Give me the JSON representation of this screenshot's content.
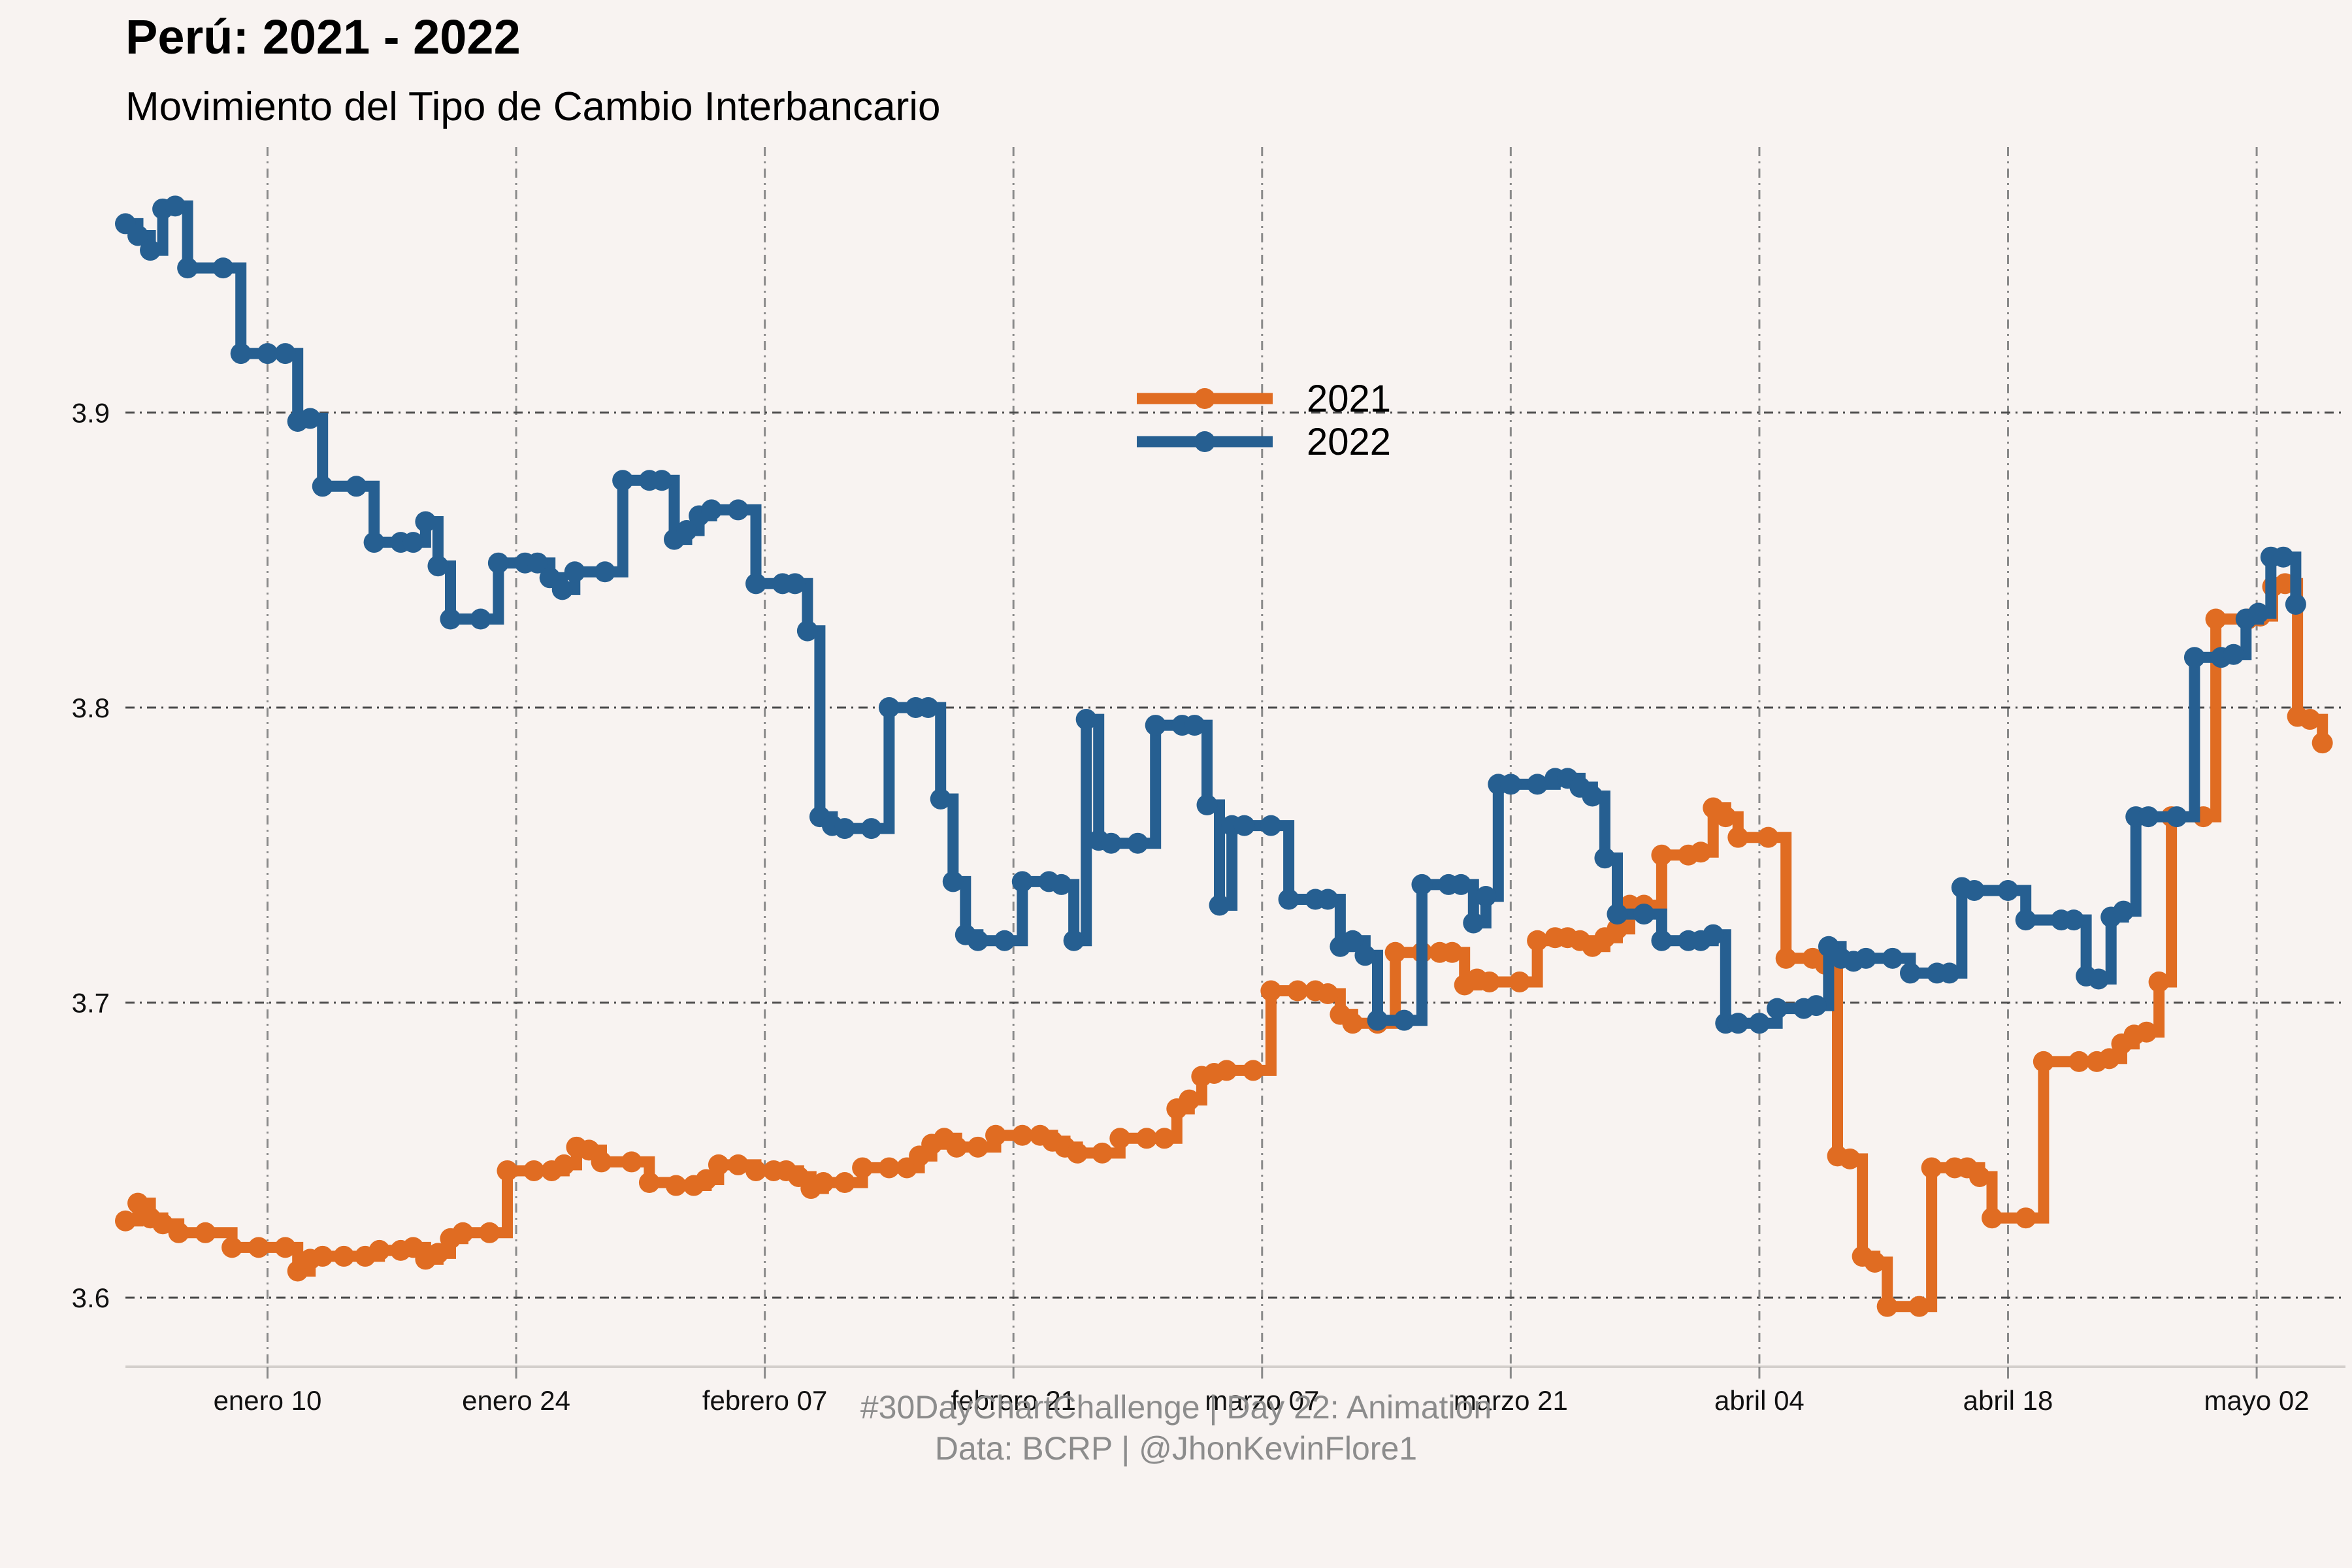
{
  "title": "Perú: 2021 - 2022",
  "subtitle": "Movimiento del Tipo de Cambio Interbancario",
  "caption_line1": "#30DayChartChallenge | Day 22: Animation",
  "caption_line2": "Data: BCRP |  @JhonKevinFlore1",
  "colors": {
    "background": "#f8f3f1",
    "series_2021": "#e06c22",
    "series_2022": "#265f91"
  },
  "chart_data": {
    "type": "line",
    "step": true,
    "xlim": [
      0,
      125
    ],
    "ylim": [
      3.577,
      3.99
    ],
    "xlabel": "",
    "ylabel": "",
    "x_ticks": [
      {
        "value": 8,
        "label": "enero 10"
      },
      {
        "value": 22,
        "label": "enero 24"
      },
      {
        "value": 36,
        "label": "febrero 07"
      },
      {
        "value": 50,
        "label": "febrero 21"
      },
      {
        "value": 64,
        "label": "marzo 07"
      },
      {
        "value": 78,
        "label": "marzo 21"
      },
      {
        "value": 92,
        "label": "abril 04"
      },
      {
        "value": 106,
        "label": "abril 18"
      },
      {
        "value": 120,
        "label": "mayo 02"
      }
    ],
    "y_ticks": [
      {
        "value": 3.6,
        "label": "3.6"
      },
      {
        "value": 3.7,
        "label": "3.7"
      },
      {
        "value": 3.8,
        "label": "3.8"
      },
      {
        "value": 3.9,
        "label": "3.9"
      }
    ],
    "grid": true,
    "legend_position": "top-center",
    "series": [
      {
        "name": "2021",
        "points": [
          [
            0,
            3.626
          ],
          [
            0.7,
            3.632
          ],
          [
            1.4,
            3.627
          ],
          [
            2.1,
            3.625
          ],
          [
            3.0,
            3.622
          ],
          [
            4.5,
            3.622
          ],
          [
            6.0,
            3.617
          ],
          [
            7.5,
            3.617
          ],
          [
            9.0,
            3.617
          ],
          [
            9.7,
            3.609
          ],
          [
            10.4,
            3.613
          ],
          [
            11.1,
            3.614
          ],
          [
            12.3,
            3.614
          ],
          [
            13.5,
            3.614
          ],
          [
            14.3,
            3.616
          ],
          [
            15.5,
            3.616
          ],
          [
            16.2,
            3.617
          ],
          [
            16.9,
            3.613
          ],
          [
            17.6,
            3.615
          ],
          [
            18.3,
            3.62
          ],
          [
            19.0,
            3.622
          ],
          [
            20.5,
            3.622
          ],
          [
            21.5,
            3.643
          ],
          [
            23.0,
            3.643
          ],
          [
            24.0,
            3.643
          ],
          [
            24.7,
            3.645
          ],
          [
            25.4,
            3.651
          ],
          [
            26.1,
            3.65
          ],
          [
            26.8,
            3.646
          ],
          [
            28.5,
            3.646
          ],
          [
            29.5,
            3.639
          ],
          [
            31.0,
            3.638
          ],
          [
            32.0,
            3.638
          ],
          [
            32.7,
            3.64
          ],
          [
            33.4,
            3.645
          ],
          [
            34.5,
            3.645
          ],
          [
            35.5,
            3.643
          ],
          [
            36.5,
            3.643
          ],
          [
            37.2,
            3.643
          ],
          [
            37.9,
            3.641
          ],
          [
            38.6,
            3.637
          ],
          [
            39.3,
            3.639
          ],
          [
            40.5,
            3.639
          ],
          [
            41.5,
            3.644
          ],
          [
            43.0,
            3.644
          ],
          [
            44.0,
            3.644
          ],
          [
            44.7,
            3.648
          ],
          [
            45.4,
            3.652
          ],
          [
            46.1,
            3.654
          ],
          [
            46.8,
            3.651
          ],
          [
            48.0,
            3.651
          ],
          [
            49.0,
            3.655
          ],
          [
            50.5,
            3.655
          ],
          [
            51.5,
            3.655
          ],
          [
            52.2,
            3.653
          ],
          [
            52.9,
            3.651
          ],
          [
            53.6,
            3.649
          ],
          [
            55.0,
            3.649
          ],
          [
            56.0,
            3.654
          ],
          [
            57.5,
            3.654
          ],
          [
            58.5,
            3.654
          ],
          [
            59.2,
            3.664
          ],
          [
            59.9,
            3.667
          ],
          [
            60.6,
            3.675
          ],
          [
            61.3,
            3.676
          ],
          [
            62.0,
            3.677
          ],
          [
            63.5,
            3.677
          ],
          [
            64.5,
            3.704
          ],
          [
            66.0,
            3.704
          ],
          [
            67.0,
            3.704
          ],
          [
            67.7,
            3.703
          ],
          [
            68.4,
            3.696
          ],
          [
            69.1,
            3.693
          ],
          [
            70.5,
            3.693
          ],
          [
            71.5,
            3.717
          ],
          [
            73.0,
            3.717
          ],
          [
            74.0,
            3.717
          ],
          [
            74.7,
            3.717
          ],
          [
            75.4,
            3.706
          ],
          [
            76.1,
            3.708
          ],
          [
            76.8,
            3.707
          ],
          [
            78.5,
            3.707
          ],
          [
            79.5,
            3.721
          ],
          [
            80.5,
            3.722
          ],
          [
            81.2,
            3.722
          ],
          [
            81.9,
            3.721
          ],
          [
            82.6,
            3.719
          ],
          [
            83.3,
            3.722
          ],
          [
            84.0,
            3.725
          ],
          [
            84.7,
            3.733
          ],
          [
            85.5,
            3.733
          ],
          [
            86.5,
            3.75
          ],
          [
            88.0,
            3.75
          ],
          [
            88.7,
            3.751
          ],
          [
            89.4,
            3.766
          ],
          [
            90.1,
            3.763
          ],
          [
            90.8,
            3.756
          ],
          [
            92.5,
            3.756
          ],
          [
            93.5,
            3.715
          ],
          [
            95.0,
            3.715
          ],
          [
            95.7,
            3.713
          ],
          [
            96.4,
            3.648
          ],
          [
            97.1,
            3.647
          ],
          [
            97.8,
            3.614
          ],
          [
            98.5,
            3.612
          ],
          [
            99.2,
            3.597
          ],
          [
            101.0,
            3.597
          ],
          [
            101.7,
            3.644
          ],
          [
            103.0,
            3.644
          ],
          [
            103.7,
            3.644
          ],
          [
            104.4,
            3.641
          ],
          [
            105.1,
            3.627
          ],
          [
            107.0,
            3.627
          ],
          [
            108.0,
            3.68
          ],
          [
            110.0,
            3.68
          ],
          [
            111.0,
            3.68
          ],
          [
            111.7,
            3.681
          ],
          [
            112.4,
            3.686
          ],
          [
            113.1,
            3.689
          ],
          [
            113.8,
            3.69
          ],
          [
            114.5,
            3.707
          ],
          [
            115.2,
            3.763
          ],
          [
            117.0,
            3.763
          ],
          [
            117.7,
            3.83
          ],
          [
            119.5,
            3.83
          ],
          [
            120.2,
            3.831
          ],
          [
            120.9,
            3.841
          ],
          [
            121.6,
            3.842
          ],
          [
            122.3,
            3.797
          ],
          [
            123.0,
            3.796
          ],
          [
            123.7,
            3.788
          ]
        ]
      },
      {
        "name": "2022",
        "points": [
          [
            0,
            3.964
          ],
          [
            0.7,
            3.96
          ],
          [
            1.4,
            3.955
          ],
          [
            2.1,
            3.969
          ],
          [
            2.8,
            3.97
          ],
          [
            3.5,
            3.949
          ],
          [
            5.5,
            3.949
          ],
          [
            6.5,
            3.92
          ],
          [
            8.0,
            3.92
          ],
          [
            9.0,
            3.92
          ],
          [
            9.7,
            3.897
          ],
          [
            10.4,
            3.898
          ],
          [
            11.1,
            3.875
          ],
          [
            13.0,
            3.875
          ],
          [
            14.0,
            3.856
          ],
          [
            15.5,
            3.856
          ],
          [
            16.2,
            3.856
          ],
          [
            16.9,
            3.863
          ],
          [
            17.6,
            3.848
          ],
          [
            18.3,
            3.83
          ],
          [
            20.0,
            3.83
          ],
          [
            21.0,
            3.849
          ],
          [
            22.5,
            3.849
          ],
          [
            23.2,
            3.849
          ],
          [
            23.9,
            3.844
          ],
          [
            24.6,
            3.84
          ],
          [
            25.3,
            3.846
          ],
          [
            27.0,
            3.846
          ],
          [
            28.0,
            3.877
          ],
          [
            29.5,
            3.877
          ],
          [
            30.2,
            3.877
          ],
          [
            30.9,
            3.857
          ],
          [
            31.6,
            3.86
          ],
          [
            32.3,
            3.865
          ],
          [
            33.0,
            3.867
          ],
          [
            34.5,
            3.867
          ],
          [
            35.5,
            3.842
          ],
          [
            37.0,
            3.842
          ],
          [
            37.7,
            3.842
          ],
          [
            38.4,
            3.826
          ],
          [
            39.1,
            3.763
          ],
          [
            39.8,
            3.76
          ],
          [
            40.5,
            3.759
          ],
          [
            42.0,
            3.759
          ],
          [
            43.0,
            3.8
          ],
          [
            44.5,
            3.8
          ],
          [
            45.2,
            3.8
          ],
          [
            45.9,
            3.769
          ],
          [
            46.6,
            3.741
          ],
          [
            47.3,
            3.723
          ],
          [
            48.0,
            3.721
          ],
          [
            49.5,
            3.721
          ],
          [
            50.5,
            3.741
          ],
          [
            52.0,
            3.741
          ],
          [
            52.7,
            3.74
          ],
          [
            53.4,
            3.721
          ],
          [
            54.1,
            3.796
          ],
          [
            54.8,
            3.755
          ],
          [
            55.5,
            3.754
          ],
          [
            57.0,
            3.754
          ],
          [
            58.0,
            3.794
          ],
          [
            59.5,
            3.794
          ],
          [
            60.2,
            3.794
          ],
          [
            60.9,
            3.767
          ],
          [
            61.6,
            3.733
          ],
          [
            62.3,
            3.76
          ],
          [
            63.0,
            3.76
          ],
          [
            64.5,
            3.76
          ],
          [
            65.5,
            3.735
          ],
          [
            67.0,
            3.735
          ],
          [
            67.7,
            3.735
          ],
          [
            68.4,
            3.719
          ],
          [
            69.1,
            3.721
          ],
          [
            69.8,
            3.716
          ],
          [
            70.5,
            3.694
          ],
          [
            72.0,
            3.694
          ],
          [
            73.0,
            3.74
          ],
          [
            74.5,
            3.74
          ],
          [
            75.2,
            3.74
          ],
          [
            75.9,
            3.727
          ],
          [
            76.6,
            3.736
          ],
          [
            77.3,
            3.774
          ],
          [
            78.0,
            3.774
          ],
          [
            79.5,
            3.774
          ],
          [
            80.5,
            3.776
          ],
          [
            81.2,
            3.776
          ],
          [
            81.9,
            3.773
          ],
          [
            82.6,
            3.77
          ],
          [
            83.3,
            3.749
          ],
          [
            84.0,
            3.73
          ],
          [
            85.5,
            3.73
          ],
          [
            86.5,
            3.721
          ],
          [
            88.0,
            3.721
          ],
          [
            88.7,
            3.721
          ],
          [
            89.4,
            3.723
          ],
          [
            90.1,
            3.693
          ],
          [
            90.8,
            3.693
          ],
          [
            92.0,
            3.693
          ],
          [
            93.0,
            3.698
          ],
          [
            94.5,
            3.698
          ],
          [
            95.2,
            3.699
          ],
          [
            95.9,
            3.719
          ],
          [
            96.6,
            3.715
          ],
          [
            97.3,
            3.714
          ],
          [
            98.0,
            3.715
          ],
          [
            99.5,
            3.715
          ],
          [
            100.5,
            3.71
          ],
          [
            102.0,
            3.71
          ],
          [
            102.7,
            3.71
          ],
          [
            103.4,
            3.739
          ],
          [
            104.1,
            3.738
          ],
          [
            106.0,
            3.738
          ],
          [
            107.0,
            3.728
          ],
          [
            109.0,
            3.728
          ],
          [
            109.7,
            3.728
          ],
          [
            110.4,
            3.709
          ],
          [
            111.1,
            3.708
          ],
          [
            111.8,
            3.729
          ],
          [
            112.5,
            3.731
          ],
          [
            113.2,
            3.763
          ],
          [
            113.9,
            3.763
          ],
          [
            115.5,
            3.763
          ],
          [
            116.5,
            3.817
          ],
          [
            118.0,
            3.817
          ],
          [
            118.7,
            3.818
          ],
          [
            119.4,
            3.83
          ],
          [
            120.1,
            3.832
          ],
          [
            120.8,
            3.851
          ],
          [
            121.5,
            3.851
          ],
          [
            122.2,
            3.835
          ]
        ]
      }
    ]
  }
}
